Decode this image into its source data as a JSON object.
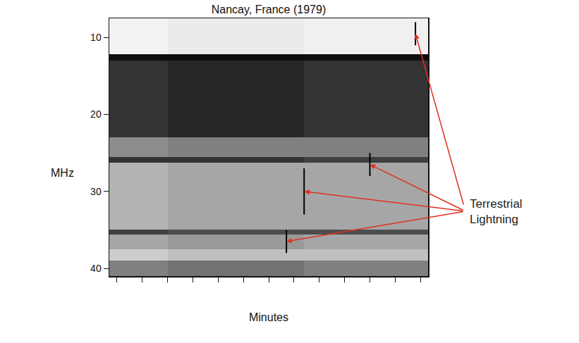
{
  "chart_data": {
    "type": "heatmap",
    "title": "Nancay, France (1979)",
    "x_label": "Minutes",
    "y_label": "MHz",
    "annotation": "Terrestrial Lightning",
    "x_bins": [
      -0.3,
      2.0,
      7.4,
      12.3
    ],
    "y_bins": [
      7.5,
      12.2,
      13.0,
      23.0,
      25.5,
      26.3,
      35.0,
      35.6,
      37.5,
      39.0,
      41
    ],
    "cells": [
      [
        0.05,
        0.08,
        0.06
      ],
      [
        0.95,
        0.95,
        0.95
      ],
      [
        0.8,
        0.85,
        0.8
      ],
      [
        0.45,
        0.5,
        0.5
      ],
      [
        0.8,
        0.8,
        0.75
      ],
      [
        0.3,
        0.35,
        0.35
      ],
      [
        0.75,
        0.7,
        0.7
      ],
      [
        0.35,
        0.4,
        0.35
      ],
      [
        0.2,
        0.25,
        0.25
      ],
      [
        0.5,
        0.55,
        0.5
      ]
    ],
    "zlim": [
      0,
      1
    ],
    "lightning": [
      {
        "x": 11.8,
        "y0": 8.0,
        "y1": 11.0
      },
      {
        "x": 10.0,
        "y0": 25.0,
        "y1": 28.0
      },
      {
        "x": 7.4,
        "y0": 27.0,
        "y1": 33.0
      },
      {
        "x": 6.7,
        "y0": 35.0,
        "y1": 38.0
      }
    ],
    "xlim": [
      -0.3,
      12.3
    ],
    "ylim": [
      41,
      7.5
    ],
    "xticks": [
      0,
      1,
      2,
      3,
      4,
      5,
      6,
      7,
      8,
      9,
      10,
      11,
      12
    ],
    "yticks": [
      10,
      20,
      30,
      40
    ],
    "tick_labels": "y",
    "grid": false
  }
}
